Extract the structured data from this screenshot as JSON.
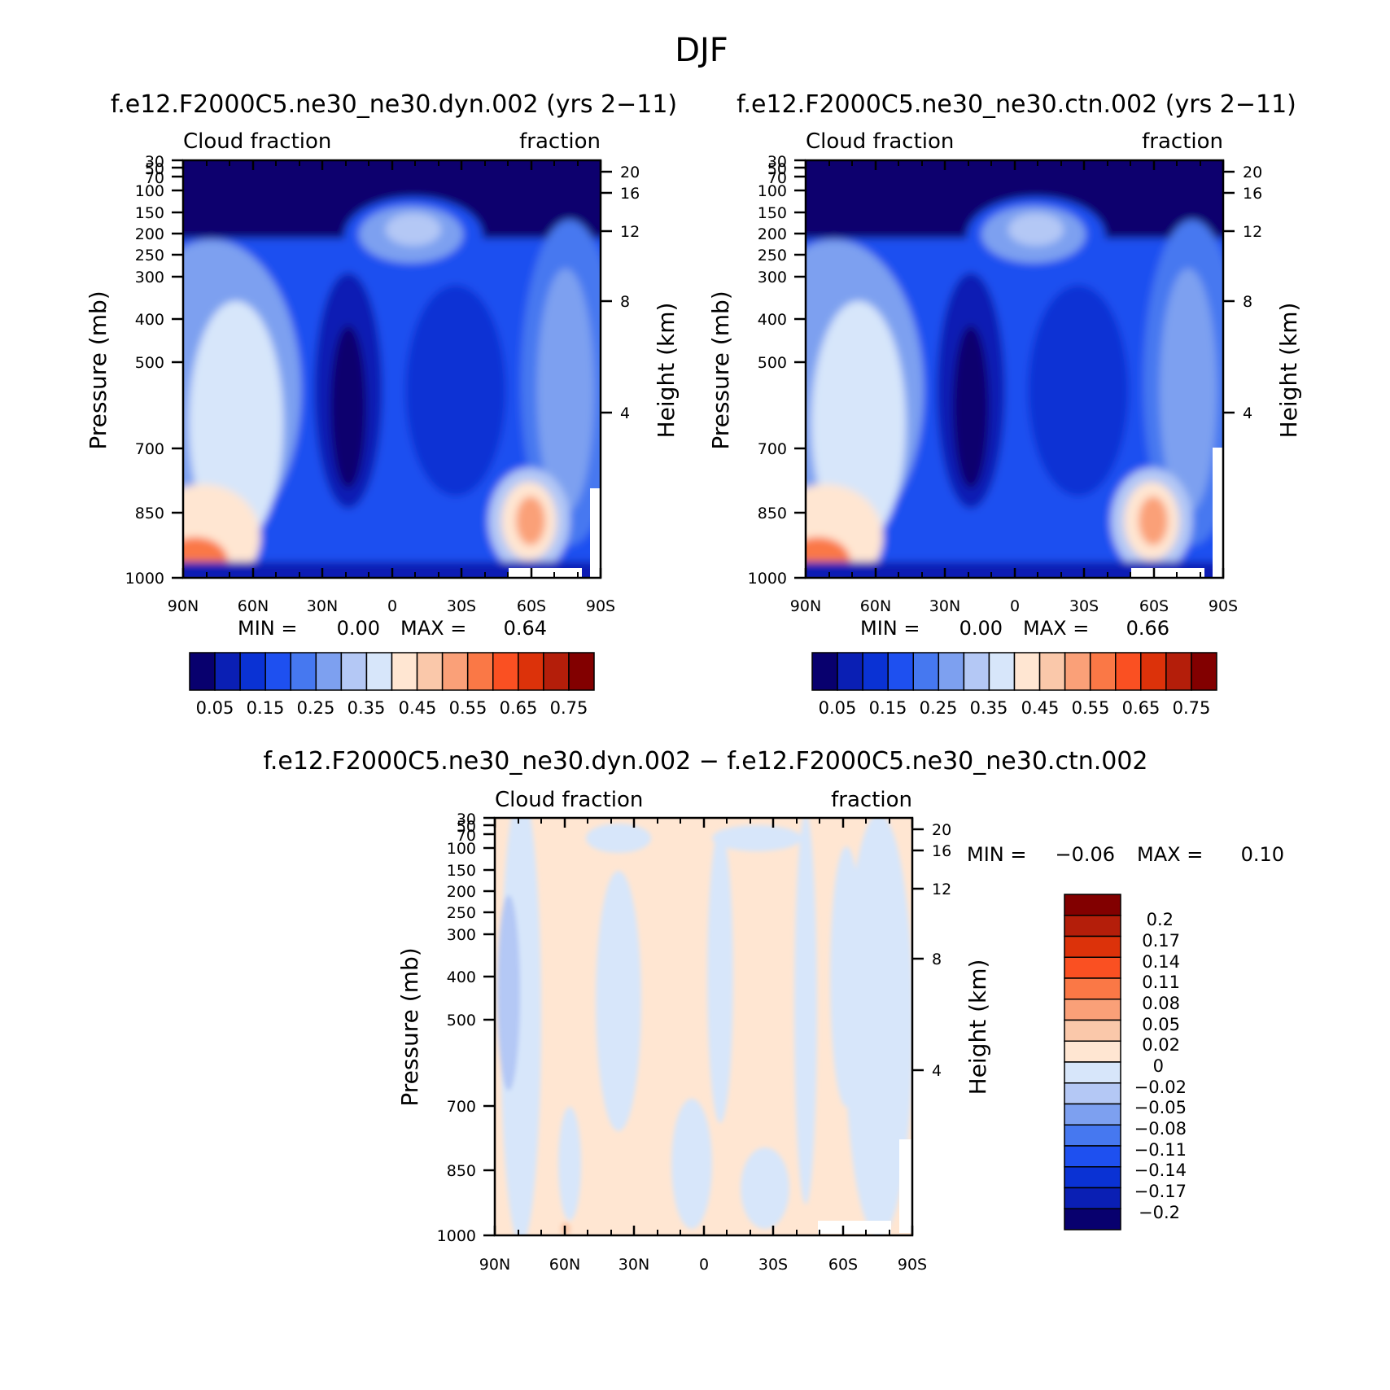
{
  "page_title": "DJF",
  "chart_data": [
    {
      "type": "heatmap",
      "title": "f.e12.F2000C5.ne30_ne30.dyn.002 (yrs 2−11)",
      "left_label": "Cloud fraction",
      "right_label": "fraction",
      "ylabel": "Pressure (mb)",
      "y2label": "Height (km)",
      "xticks": [
        "90N",
        "60N",
        "30N",
        "0",
        "30S",
        "60S",
        "90S"
      ],
      "yticks": [
        "30",
        "50",
        "70",
        "100",
        "150",
        "200",
        "250",
        "300",
        "400",
        "500",
        "700",
        "850",
        "1000"
      ],
      "y2ticks": [
        "20",
        "16",
        "12",
        "8",
        "4"
      ],
      "min_label": "MIN =",
      "min_value": "0.00",
      "max_label": "MAX =",
      "max_value": "0.64",
      "colorbar": {
        "orientation": "horizontal",
        "labels": [
          "0.05",
          "0.15",
          "0.25",
          "0.35",
          "0.45",
          "0.55",
          "0.65",
          "0.75"
        ],
        "colors": [
          "#08006e",
          "#0a1fb4",
          "#0a32d4",
          "#1e50f0",
          "#4678f0",
          "#7da0f0",
          "#b4c8f5",
          "#d7e6fa",
          "#ffe6d2",
          "#fac8aa",
          "#faa078",
          "#fa7846",
          "#fa5022",
          "#dc320a",
          "#b41e0a",
          "#820000"
        ]
      }
    },
    {
      "type": "heatmap",
      "title": "f.e12.F2000C5.ne30_ne30.ctn.002 (yrs 2−11)",
      "left_label": "Cloud fraction",
      "right_label": "fraction",
      "ylabel": "Pressure (mb)",
      "y2label": "Height (km)",
      "xticks": [
        "90N",
        "60N",
        "30N",
        "0",
        "30S",
        "60S",
        "90S"
      ],
      "yticks": [
        "30",
        "50",
        "70",
        "100",
        "150",
        "200",
        "250",
        "300",
        "400",
        "500",
        "700",
        "850",
        "1000"
      ],
      "y2ticks": [
        "20",
        "16",
        "12",
        "8",
        "4"
      ],
      "min_label": "MIN =",
      "min_value": "0.00",
      "max_label": "MAX =",
      "max_value": "0.66",
      "colorbar": {
        "orientation": "horizontal",
        "labels": [
          "0.05",
          "0.15",
          "0.25",
          "0.35",
          "0.45",
          "0.55",
          "0.65",
          "0.75"
        ],
        "colors": [
          "#08006e",
          "#0a1fb4",
          "#0a32d4",
          "#1e50f0",
          "#4678f0",
          "#7da0f0",
          "#b4c8f5",
          "#d7e6fa",
          "#ffe6d2",
          "#fac8aa",
          "#faa078",
          "#fa7846",
          "#fa5022",
          "#dc320a",
          "#b41e0a",
          "#820000"
        ]
      }
    },
    {
      "type": "heatmap",
      "title": "f.e12.F2000C5.ne30_ne30.dyn.002 − f.e12.F2000C5.ne30_ne30.ctn.002",
      "left_label": "Cloud fraction",
      "right_label": "fraction",
      "ylabel": "Pressure (mb)",
      "y2label": "Height (km)",
      "xticks": [
        "90N",
        "60N",
        "30N",
        "0",
        "30S",
        "60S",
        "90S"
      ],
      "yticks": [
        "30",
        "50",
        "70",
        "100",
        "150",
        "200",
        "250",
        "300",
        "400",
        "500",
        "700",
        "850",
        "1000"
      ],
      "y2ticks": [
        "20",
        "16",
        "12",
        "8",
        "4"
      ],
      "min_label": "MIN =",
      "min_value": "−0.06",
      "max_label": "MAX =",
      "max_value": "0.10",
      "colorbar": {
        "orientation": "vertical",
        "labels": [
          "0.2",
          "0.17",
          "0.14",
          "0.11",
          "0.08",
          "0.05",
          "0.02",
          "0",
          "−0.02",
          "−0.05",
          "−0.08",
          "−0.11",
          "−0.14",
          "−0.17",
          "−0.2"
        ],
        "colors": [
          "#820000",
          "#b41e0a",
          "#dc320a",
          "#fa5022",
          "#fa7846",
          "#faa078",
          "#fac8aa",
          "#ffe6d2",
          "#d7e6fa",
          "#b4c8f5",
          "#7da0f0",
          "#4678f0",
          "#1e50f0",
          "#0a32d4",
          "#0a1fb4",
          "#08006e"
        ]
      }
    }
  ]
}
